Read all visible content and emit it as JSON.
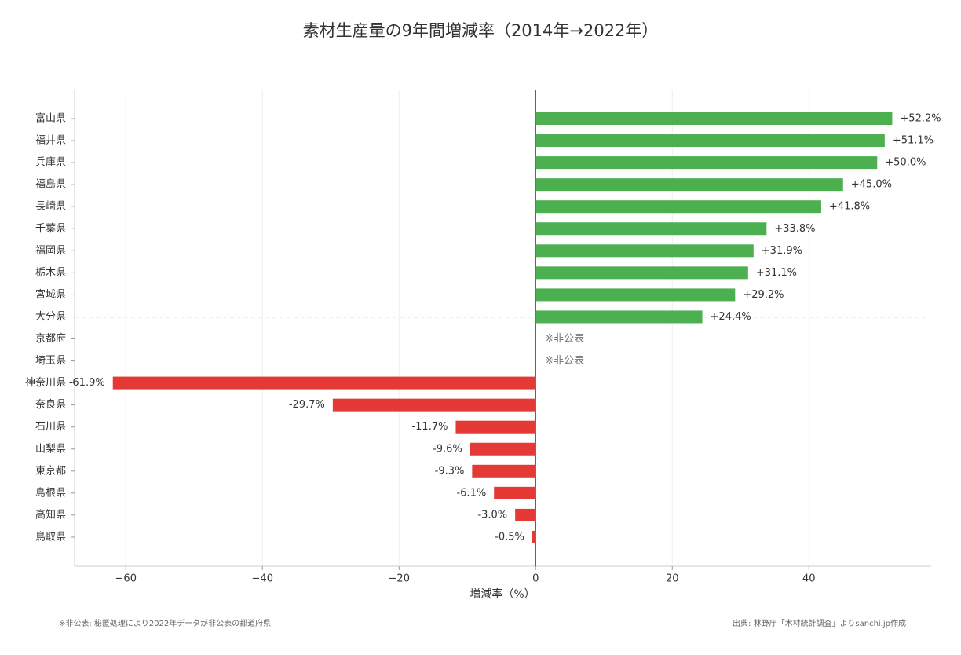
{
  "chart_data": {
    "type": "barh",
    "title": "素材生産量の9年間増減率（2014年→2022年）",
    "xlabel": "増減率（%）",
    "categories": [
      "富山県",
      "福井県",
      "兵庫県",
      "福島県",
      "長崎県",
      "千葉県",
      "福岡県",
      "栃木県",
      "宮城県",
      "大分県",
      "京都府",
      "埼玉県",
      "神奈川県",
      "奈良県",
      "石川県",
      "山梨県",
      "東京都",
      "島根県",
      "高知県",
      "鳥取県"
    ],
    "values": [
      52.2,
      51.1,
      50.0,
      45.0,
      41.8,
      33.8,
      31.9,
      31.1,
      29.2,
      24.4,
      null,
      null,
      -61.9,
      -29.7,
      -11.7,
      -9.6,
      -9.3,
      -6.1,
      -3.0,
      -0.5
    ],
    "value_labels": [
      "+52.2%",
      "+51.1%",
      "+50.0%",
      "+45.0%",
      "+41.8%",
      "+33.8%",
      "+31.9%",
      "+31.1%",
      "+29.2%",
      "+24.4%",
      "※非公表",
      "※非公表",
      "-61.9%",
      "-29.7%",
      "-11.7%",
      "-9.6%",
      "-9.3%",
      "-6.1%",
      "-3.0%",
      "-0.5%"
    ],
    "positive_color": "#4caf50",
    "negative_color": "#e53935",
    "xlim": [
      -67.5,
      57.9
    ],
    "xticks": [
      {
        "value": -60,
        "label": "−60"
      },
      {
        "value": -40,
        "label": "−40"
      },
      {
        "value": -20,
        "label": "−20"
      },
      0,
      20,
      40
    ],
    "grid": true,
    "footnote": "※非公表: 秘匿処理により2022年データが非公表の都道府県",
    "source": "出典: 林野庁「木材統計調査」よりsanchi.jp作成"
  }
}
